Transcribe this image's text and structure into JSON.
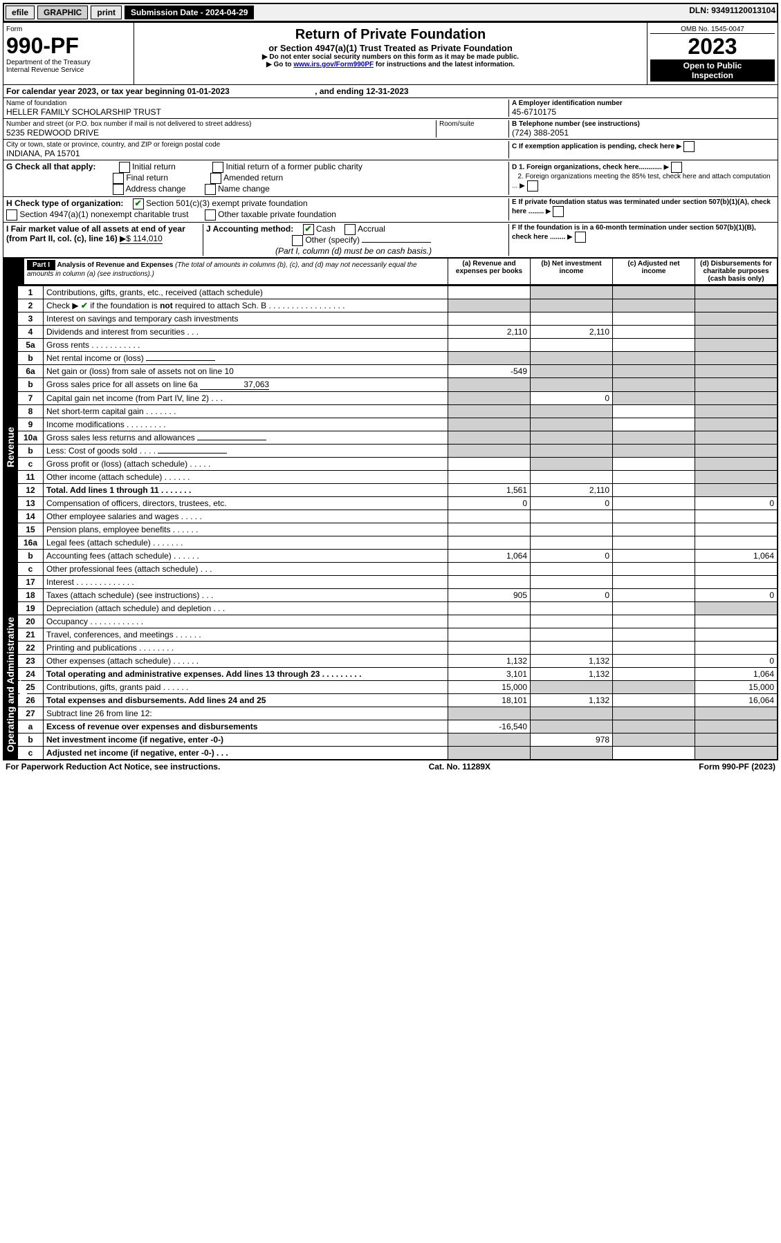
{
  "topbar": {
    "efile": "efile",
    "graphic": "GRAPHIC",
    "print": "print",
    "submission_label": "Submission Date - 2024-04-29",
    "dln": "DLN: 93491120013104"
  },
  "header": {
    "form_word": "Form",
    "form_number": "990-PF",
    "dept": "Department of the Treasury",
    "irs": "Internal Revenue Service",
    "title": "Return of Private Foundation",
    "subtitle": "or Section 4947(a)(1) Trust Treated as Private Foundation",
    "note1": "▶ Do not enter social security numbers on this form as it may be made public.",
    "note2_prefix": "▶ Go to ",
    "note2_link": "www.irs.gov/Form990PF",
    "note2_suffix": " for instructions and the latest information.",
    "omb": "OMB No. 1545-0047",
    "year": "2023",
    "open": "Open to Public",
    "inspection": "Inspection"
  },
  "cal": {
    "text": "For calendar year 2023, or tax year beginning 01-01-2023",
    "ending": ", and ending 12-31-2023"
  },
  "id": {
    "name_label": "Name of foundation",
    "name": "HELLER FAMILY SCHOLARSHIP TRUST",
    "addr_label": "Number and street (or P.O. box number if mail is not delivered to street address)",
    "addr": "5235 REDWOOD DRIVE",
    "room_label": "Room/suite",
    "city_label": "City or town, state or province, country, and ZIP or foreign postal code",
    "city": "INDIANA, PA  15701",
    "ein_label": "A Employer identification number",
    "ein": "45-6710175",
    "tel_label": "B Telephone number (see instructions)",
    "tel": "(724) 388-2051",
    "c": "C If exemption application is pending, check here",
    "d1": "D 1. Foreign organizations, check here............",
    "d2": "2. Foreign organizations meeting the 85% test, check here and attach computation ...",
    "e": "E  If private foundation status was terminated under section 507(b)(1)(A), check here ........",
    "f": "F  If the foundation is in a 60-month termination under section 507(b)(1)(B), check here ........"
  },
  "g": {
    "label": "G Check all that apply:",
    "initial": "Initial return",
    "final": "Final return",
    "address": "Address change",
    "initial_former": "Initial return of a former public charity",
    "amended": "Amended return",
    "name": "Name change"
  },
  "h": {
    "label": "H Check type of organization:",
    "opt1": "Section 501(c)(3) exempt private foundation",
    "opt2": "Section 4947(a)(1) nonexempt charitable trust",
    "opt3": "Other taxable private foundation"
  },
  "i": {
    "label": "I Fair market value of all assets at end of year (from Part II, col. (c), line 16)",
    "value": "▶$  114,010"
  },
  "j": {
    "label": "J Accounting method:",
    "cash": "Cash",
    "accrual": "Accrual",
    "other": "Other (specify)",
    "note": "(Part I, column (d) must be on cash basis.)"
  },
  "part1": {
    "label": "Part I",
    "title": "Analysis of Revenue and Expenses",
    "title_note": " (The total of amounts in columns (b), (c), and (d) may not necessarily equal the amounts in column (a) (see instructions).)"
  },
  "cols": {
    "a": "(a)   Revenue and expenses per books",
    "b": "(b)   Net investment income",
    "c": "(c)   Adjusted net income",
    "d": "(d)   Disbursements for charitable purposes (cash basis only)"
  },
  "side": {
    "rev": "Revenue",
    "exp": "Operating and Administrative Expenses"
  },
  "rows": [
    {
      "n": "1",
      "label": "Contributions, gifts, grants, etc., received (attach schedule)",
      "a": "",
      "b": "sh",
      "c": "sh",
      "d": "sh"
    },
    {
      "n": "2",
      "label": "Check ▶ ✔ if the foundation is not required to attach Sch. B   .  .  .  .  .  .  .  .  .  .  .  .  .  .  .  .  .",
      "a": "sh",
      "b": "sh",
      "c": "sh",
      "d": "sh",
      "check": true
    },
    {
      "n": "3",
      "label": "Interest on savings and temporary cash investments",
      "a": "",
      "b": "",
      "c": "",
      "d": "sh"
    },
    {
      "n": "4",
      "label": "Dividends and interest from securities   .   .   .",
      "a": "2,110",
      "b": "2,110",
      "c": "",
      "d": "sh"
    },
    {
      "n": "5a",
      "label": "Gross rents   .   .   .   .   .   .   .   .   .   .   .",
      "a": "",
      "b": "",
      "c": "",
      "d": "sh"
    },
    {
      "n": "b",
      "label": "Net rental income or (loss)",
      "a": "sh",
      "b": "sh",
      "c": "sh",
      "d": "sh",
      "input": true
    },
    {
      "n": "6a",
      "label": "Net gain or (loss) from sale of assets not on line 10",
      "a": "-549",
      "b": "sh",
      "c": "sh",
      "d": "sh"
    },
    {
      "n": "b",
      "label": "Gross sales price for all assets on line 6a",
      "a": "sh",
      "b": "sh",
      "c": "sh",
      "d": "sh",
      "input": true,
      "input_val": "37,063"
    },
    {
      "n": "7",
      "label": "Capital gain net income (from Part IV, line 2)   .   .   .",
      "a": "sh",
      "b": "0",
      "c": "sh",
      "d": "sh"
    },
    {
      "n": "8",
      "label": "Net short-term capital gain   .   .   .   .   .   .   .",
      "a": "sh",
      "b": "sh",
      "c": "",
      "d": "sh"
    },
    {
      "n": "9",
      "label": "Income modifications   .   .   .   .   .   .   .   .   .",
      "a": "sh",
      "b": "sh",
      "c": "",
      "d": "sh"
    },
    {
      "n": "10a",
      "label": "Gross sales less returns and allowances",
      "a": "sh",
      "b": "sh",
      "c": "sh",
      "d": "sh",
      "input": true
    },
    {
      "n": "b",
      "label": "Less: Cost of goods sold   .   .   .   .",
      "a": "sh",
      "b": "sh",
      "c": "sh",
      "d": "sh",
      "input": true
    },
    {
      "n": "c",
      "label": "Gross profit or (loss) (attach schedule)   .   .   .   .   .",
      "a": "",
      "b": "sh",
      "c": "",
      "d": "sh"
    },
    {
      "n": "11",
      "label": "Other income (attach schedule)   .   .   .   .   .   .",
      "a": "",
      "b": "",
      "c": "",
      "d": "sh"
    },
    {
      "n": "12",
      "label": "Total. Add lines 1 through 11   .   .   .   .   .   .   .",
      "a": "1,561",
      "b": "2,110",
      "c": "",
      "d": "sh",
      "bold": true
    },
    {
      "n": "13",
      "label": "Compensation of officers, directors, trustees, etc.",
      "a": "0",
      "b": "0",
      "c": "",
      "d": "0"
    },
    {
      "n": "14",
      "label": "Other employee salaries and wages   .   .   .   .   .",
      "a": "",
      "b": "",
      "c": "",
      "d": ""
    },
    {
      "n": "15",
      "label": "Pension plans, employee benefits   .   .   .   .   .   .",
      "a": "",
      "b": "",
      "c": "",
      "d": ""
    },
    {
      "n": "16a",
      "label": "Legal fees (attach schedule)   .   .   .   .   .   .   .",
      "a": "",
      "b": "",
      "c": "",
      "d": ""
    },
    {
      "n": "b",
      "label": "Accounting fees (attach schedule)   .   .   .   .   .   .",
      "a": "1,064",
      "b": "0",
      "c": "",
      "d": "1,064"
    },
    {
      "n": "c",
      "label": "Other professional fees (attach schedule)   .   .   .",
      "a": "",
      "b": "",
      "c": "",
      "d": ""
    },
    {
      "n": "17",
      "label": "Interest   .   .   .   .   .   .   .   .   .   .   .   .   .",
      "a": "",
      "b": "",
      "c": "",
      "d": ""
    },
    {
      "n": "18",
      "label": "Taxes (attach schedule) (see instructions)   .   .   .",
      "a": "905",
      "b": "0",
      "c": "",
      "d": "0"
    },
    {
      "n": "19",
      "label": "Depreciation (attach schedule) and depletion   .   .   .",
      "a": "",
      "b": "",
      "c": "",
      "d": "sh"
    },
    {
      "n": "20",
      "label": "Occupancy   .   .   .   .   .   .   .   .   .   .   .   .",
      "a": "",
      "b": "",
      "c": "",
      "d": ""
    },
    {
      "n": "21",
      "label": "Travel, conferences, and meetings   .   .   .   .   .   .",
      "a": "",
      "b": "",
      "c": "",
      "d": ""
    },
    {
      "n": "22",
      "label": "Printing and publications   .   .   .   .   .   .   .   .",
      "a": "",
      "b": "",
      "c": "",
      "d": ""
    },
    {
      "n": "23",
      "label": "Other expenses (attach schedule)   .   .   .   .   .   .",
      "a": "1,132",
      "b": "1,132",
      "c": "",
      "d": "0"
    },
    {
      "n": "24",
      "label": "Total operating and administrative expenses. Add lines 13 through 23   .   .   .   .   .   .   .   .   .",
      "a": "3,101",
      "b": "1,132",
      "c": "",
      "d": "1,064",
      "bold": true
    },
    {
      "n": "25",
      "label": "Contributions, gifts, grants paid   .   .   .   .   .   .",
      "a": "15,000",
      "b": "sh",
      "c": "sh",
      "d": "15,000"
    },
    {
      "n": "26",
      "label": "Total expenses and disbursements. Add lines 24 and 25",
      "a": "18,101",
      "b": "1,132",
      "c": "",
      "d": "16,064",
      "bold": true
    },
    {
      "n": "27",
      "label": "Subtract line 26 from line 12:",
      "a": "sh",
      "b": "sh",
      "c": "sh",
      "d": "sh"
    },
    {
      "n": "a",
      "label": "Excess of revenue over expenses and disbursements",
      "a": "-16,540",
      "b": "sh",
      "c": "sh",
      "d": "sh",
      "bold": true
    },
    {
      "n": "b",
      "label": "Net investment income (if negative, enter -0-)",
      "a": "sh",
      "b": "978",
      "c": "sh",
      "d": "sh",
      "bold": true
    },
    {
      "n": "c",
      "label": "Adjusted net income (if negative, enter -0-)   .   .   .",
      "a": "sh",
      "b": "sh",
      "c": "",
      "d": "sh",
      "bold": true
    }
  ],
  "footer": {
    "left": "For Paperwork Reduction Act Notice, see instructions.",
    "center": "Cat. No. 11289X",
    "right": "Form 990-PF (2023)"
  }
}
